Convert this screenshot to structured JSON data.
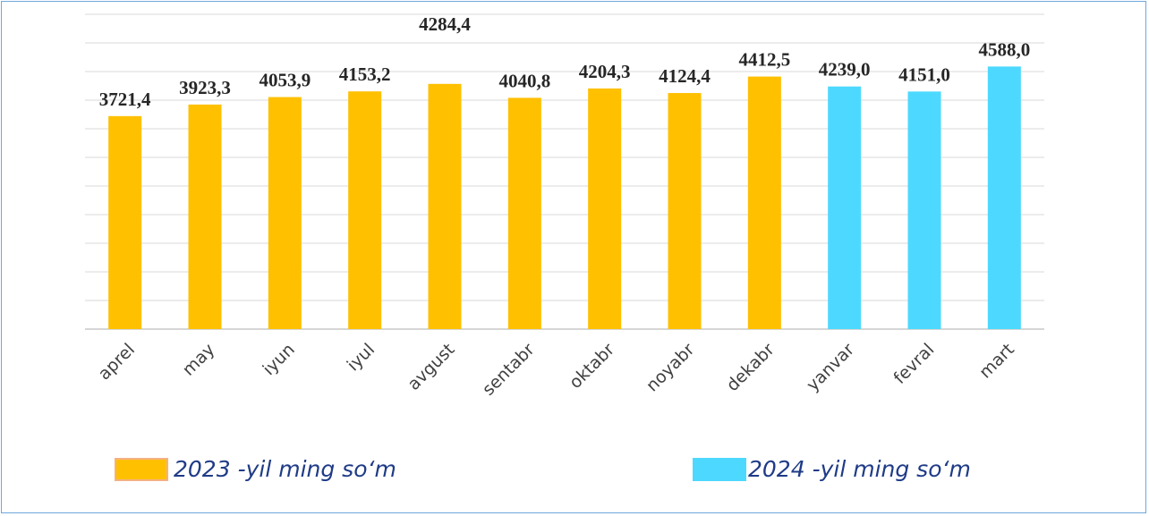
{
  "chart_data": {
    "type": "bar",
    "categories": [
      "aprel",
      "may",
      "iyun",
      "iyul",
      "avgust",
      "sentabr",
      "oktabr",
      "noyabr",
      "dekabr",
      "yanvar",
      "fevral",
      "mart"
    ],
    "values": [
      3721.4,
      3923.3,
      4053.9,
      4153.2,
      4284.4,
      4040.8,
      4204.3,
      4124.4,
      4412.5,
      4239.0,
      4151.0,
      4588.0
    ],
    "value_labels": [
      "3721,4",
      "3923,3",
      "4053,9",
      "4153,2",
      "4284,4",
      "4040,8",
      "4204,3",
      "4124,4",
      "4412,5",
      "4239,0",
      "4151,0",
      "4588,0"
    ],
    "series_assignment": [
      0,
      0,
      0,
      0,
      0,
      0,
      0,
      0,
      0,
      1,
      1,
      1
    ],
    "series": [
      {
        "name": "2023 -yil ming so‘m",
        "color": "#ffc000"
      },
      {
        "name": "2024 -yil ming so‘m",
        "color": "#4dd9ff"
      }
    ],
    "legend_border_color": "#f4b183",
    "grid": true,
    "legend_position": "bottom",
    "title": "",
    "xlabel": "",
    "ylabel": ""
  }
}
